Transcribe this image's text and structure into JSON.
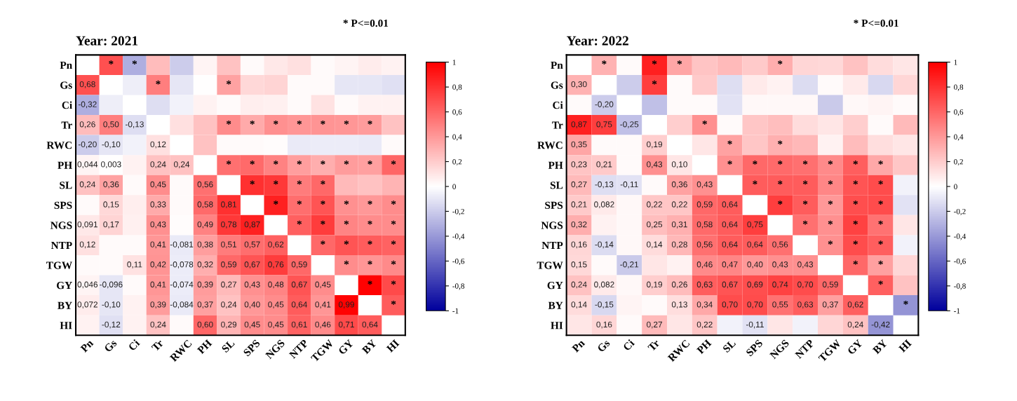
{
  "chart_data": [
    {
      "type": "heatmap",
      "title": "Year: 2021",
      "annotations": [
        "* P<=0.01"
      ],
      "categories": [
        "Pn",
        "Gs",
        "Ci",
        "Tr",
        "RWC",
        "PH",
        "SL",
        "SPS",
        "NGS",
        "NTP",
        "TGW",
        "GY",
        "BY",
        "HI"
      ],
      "y_categories": [
        "Pn",
        "Gs",
        "Ci",
        "Tr",
        "RWC",
        "PH",
        "SL",
        "SPS",
        "NGS",
        "NTP",
        "TGW",
        "GY",
        "BY",
        "HI"
      ],
      "cells": [
        [
          null,
          0.68,
          -0.32,
          0.26,
          -0.2,
          0.044,
          0.24,
          0.02,
          0.091,
          0.12,
          0.02,
          0.046,
          0.072,
          0.05
        ],
        [
          0.68,
          null,
          -0.07,
          0.5,
          -0.1,
          0.003,
          0.36,
          0.15,
          0.17,
          0.02,
          0.02,
          -0.096,
          -0.1,
          -0.12
        ],
        [
          -0.32,
          -0.07,
          null,
          -0.13,
          -0.05,
          0.05,
          0.02,
          0.07,
          0.06,
          0.02,
          0.11,
          0.02,
          0.05,
          0.05
        ],
        [
          0.26,
          0.5,
          -0.13,
          null,
          0.12,
          0.24,
          0.45,
          0.33,
          0.43,
          0.41,
          0.42,
          0.41,
          0.39,
          0.24
        ],
        [
          -0.2,
          -0.1,
          -0.05,
          0.12,
          null,
          0.24,
          0.02,
          0.02,
          0.01,
          -0.081,
          -0.078,
          -0.074,
          -0.084,
          0.02
        ],
        [
          0.044,
          0.003,
          0.05,
          0.24,
          0.24,
          null,
          0.56,
          0.58,
          0.49,
          0.38,
          0.32,
          0.39,
          0.37,
          0.6
        ],
        [
          0.24,
          0.36,
          0.02,
          0.45,
          0.02,
          0.56,
          null,
          0.81,
          0.78,
          0.51,
          0.59,
          0.27,
          0.24,
          0.29
        ],
        [
          0.02,
          0.15,
          0.07,
          0.33,
          0.02,
          0.58,
          0.81,
          null,
          0.87,
          0.57,
          0.67,
          0.43,
          0.4,
          0.45
        ],
        [
          0.091,
          0.17,
          0.06,
          0.43,
          0.01,
          0.49,
          0.78,
          0.87,
          null,
          0.62,
          0.76,
          0.48,
          0.45,
          0.45
        ],
        [
          0.12,
          0.02,
          0.02,
          0.41,
          -0.081,
          0.38,
          0.51,
          0.57,
          0.62,
          null,
          0.59,
          0.67,
          0.64,
          0.61
        ],
        [
          0.02,
          0.02,
          0.11,
          0.42,
          -0.078,
          0.32,
          0.59,
          0.67,
          0.76,
          0.59,
          null,
          0.45,
          0.41,
          0.46
        ],
        [
          0.046,
          -0.096,
          0.02,
          0.41,
          -0.074,
          0.39,
          0.27,
          0.43,
          0.48,
          0.67,
          0.45,
          null,
          0.99,
          0.71
        ],
        [
          0.072,
          -0.1,
          0.05,
          0.39,
          -0.084,
          0.37,
          0.24,
          0.4,
          0.45,
          0.64,
          0.41,
          0.99,
          null,
          0.64
        ],
        [
          0.05,
          -0.12,
          0.05,
          0.24,
          0.02,
          0.6,
          0.29,
          0.45,
          0.45,
          0.61,
          0.46,
          0.71,
          0.64,
          null
        ]
      ],
      "cell_labels": [
        [
          null,
          "*",
          "*",
          null,
          null,
          null,
          null,
          null,
          null,
          null,
          null,
          null,
          null,
          null
        ],
        [
          "0,68",
          null,
          null,
          "*",
          null,
          null,
          "*",
          null,
          null,
          null,
          null,
          null,
          null,
          null
        ],
        [
          "-0,32",
          null,
          null,
          null,
          null,
          null,
          null,
          null,
          null,
          null,
          null,
          null,
          null,
          null
        ],
        [
          "0,26",
          "0,50",
          "-0,13",
          null,
          null,
          null,
          "*",
          "*",
          "*",
          "*",
          "*",
          "*",
          "*",
          null
        ],
        [
          "-0,20",
          "-0,10",
          null,
          "0,12",
          null,
          null,
          null,
          null,
          null,
          null,
          null,
          null,
          null,
          null
        ],
        [
          "0,044",
          "0,003",
          null,
          "0,24",
          "0,24",
          null,
          "*",
          "*",
          "*",
          "*",
          "*",
          "*",
          "*",
          "*"
        ],
        [
          "0,24",
          "0,36",
          null,
          "0,45",
          null,
          "0,56",
          null,
          "*",
          "*",
          "*",
          "*",
          null,
          null,
          null
        ],
        [
          null,
          "0,15",
          null,
          "0,33",
          null,
          "0,58",
          "0,81",
          null,
          "*",
          "*",
          "*",
          "*",
          "*",
          "*"
        ],
        [
          "0,091",
          "0,17",
          null,
          "0,43",
          null,
          "0,49",
          "0,78",
          "0,87",
          null,
          "*",
          "*",
          "*",
          "*",
          "*"
        ],
        [
          "0,12",
          null,
          null,
          "0,41",
          "-0,081",
          "0,38",
          "0,51",
          "0,57",
          "0,62",
          null,
          "*",
          "*",
          "*",
          "*"
        ],
        [
          null,
          null,
          "0,11",
          "0,42",
          "-0,078",
          "0,32",
          "0,59",
          "0,67",
          "0,76",
          "0,59",
          null,
          "*",
          "*",
          "*"
        ],
        [
          "0,046",
          "-0,096",
          null,
          "0,41",
          "-0,074",
          "0,39",
          "0,27",
          "0,43",
          "0,48",
          "0,67",
          "0,45",
          null,
          "*",
          "*"
        ],
        [
          "0,072",
          "-0,10",
          null,
          "0,39",
          "-0,084",
          "0,37",
          "0,24",
          "0,40",
          "0,45",
          "0,64",
          "0,41",
          "0,99",
          null,
          "*"
        ],
        [
          null,
          "-0,12",
          null,
          "0,24",
          null,
          "0,60",
          "0,29",
          "0,45",
          "0,45",
          "0,61",
          "0,46",
          "0,71",
          "0,64",
          null
        ]
      ],
      "clim": [
        -1,
        1
      ],
      "cticks": [
        {
          "value": -1,
          "label": "-1"
        },
        {
          "value": -0.8,
          "label": "-0,8"
        },
        {
          "value": -0.6,
          "label": "-0,6"
        },
        {
          "value": -0.4,
          "label": "-0,4"
        },
        {
          "value": -0.2,
          "label": "-0,2"
        },
        0,
        {
          "value": 0.2,
          "label": "0,2"
        },
        {
          "value": 0.4,
          "label": "0,4"
        },
        {
          "value": 0.6,
          "label": "0,6"
        },
        {
          "value": 0.8,
          "label": "0,8"
        },
        1
      ]
    },
    {
      "type": "heatmap",
      "title": "Year: 2022",
      "annotations": [
        "* P<=0.01"
      ],
      "categories": [
        "Pn",
        "Gs",
        "Ci",
        "Tr",
        "RWC",
        "PH",
        "SL",
        "SPS",
        "NGS",
        "NTP",
        "TGW",
        "GY",
        "BY",
        "HI"
      ],
      "y_categories": [
        "Pn",
        "Gs",
        "Ci",
        "Tr",
        "RWC",
        "PH",
        "SL",
        "SPS",
        "NGS",
        "NTP",
        "TGW",
        "GY",
        "BY",
        "HI"
      ],
      "cells": [
        [
          null,
          0.3,
          0.02,
          0.87,
          0.35,
          0.23,
          0.27,
          0.21,
          0.32,
          0.16,
          0.15,
          0.24,
          0.14,
          0.1
        ],
        [
          0.3,
          null,
          -0.2,
          0.75,
          0.02,
          0.21,
          -0.13,
          0.082,
          0.05,
          -0.14,
          0.02,
          0.082,
          -0.15,
          0.16
        ],
        [
          0.02,
          -0.2,
          null,
          -0.25,
          0.02,
          0.02,
          -0.11,
          0.03,
          0.03,
          0.03,
          -0.21,
          0.03,
          0.04,
          0.02
        ],
        [
          0.87,
          0.75,
          -0.25,
          null,
          0.19,
          0.43,
          0.02,
          0.22,
          0.25,
          0.14,
          0.1,
          0.19,
          0.02,
          0.27
        ],
        [
          0.35,
          0.02,
          0.02,
          0.19,
          null,
          0.1,
          0.36,
          0.22,
          0.31,
          0.28,
          0.05,
          0.26,
          0.13,
          0.1
        ],
        [
          0.23,
          0.21,
          0.02,
          0.43,
          0.1,
          null,
          0.43,
          0.59,
          0.58,
          0.56,
          0.46,
          0.63,
          0.34,
          0.22
        ],
        [
          0.27,
          -0.13,
          -0.11,
          0.02,
          0.36,
          0.43,
          null,
          0.64,
          0.64,
          0.64,
          0.47,
          0.67,
          0.7,
          -0.05
        ],
        [
          0.21,
          0.082,
          0.03,
          0.22,
          0.22,
          0.59,
          0.64,
          null,
          0.75,
          0.64,
          0.4,
          0.69,
          0.7,
          -0.11
        ],
        [
          0.32,
          0.05,
          0.03,
          0.25,
          0.31,
          0.58,
          0.64,
          0.75,
          null,
          0.56,
          0.43,
          0.74,
          0.55,
          0.1
        ],
        [
          0.16,
          -0.14,
          0.03,
          0.14,
          0.28,
          0.56,
          0.64,
          0.64,
          0.56,
          null,
          0.43,
          0.7,
          0.63,
          -0.05
        ],
        [
          0.15,
          0.02,
          -0.21,
          0.1,
          0.05,
          0.46,
          0.47,
          0.4,
          0.43,
          0.43,
          null,
          0.59,
          0.37,
          0.16
        ],
        [
          0.24,
          0.082,
          0.03,
          0.19,
          0.26,
          0.63,
          0.67,
          0.69,
          0.74,
          0.7,
          0.59,
          null,
          0.62,
          0.24
        ],
        [
          0.14,
          -0.15,
          0.04,
          0.02,
          0.13,
          0.34,
          0.7,
          0.7,
          0.55,
          0.63,
          0.37,
          0.62,
          null,
          -0.42
        ],
        [
          0.1,
          0.16,
          0.02,
          0.27,
          0.1,
          0.22,
          -0.05,
          -0.11,
          0.1,
          -0.05,
          0.16,
          0.24,
          -0.42,
          null
        ]
      ],
      "cell_labels": [
        [
          null,
          "*",
          null,
          "*",
          "*",
          null,
          null,
          null,
          "*",
          null,
          null,
          null,
          null,
          null
        ],
        [
          "0,30",
          null,
          null,
          "*",
          null,
          null,
          null,
          null,
          null,
          null,
          null,
          null,
          null,
          null
        ],
        [
          null,
          "-0,20",
          null,
          null,
          null,
          null,
          null,
          null,
          null,
          null,
          null,
          null,
          null,
          null
        ],
        [
          "0,87",
          "0,75",
          "-0,25",
          null,
          null,
          "*",
          null,
          null,
          null,
          null,
          null,
          null,
          null,
          null
        ],
        [
          "0,35",
          null,
          null,
          "0,19",
          null,
          null,
          "*",
          null,
          "*",
          null,
          null,
          null,
          null,
          null
        ],
        [
          "0,23",
          "0,21",
          null,
          "0,43",
          "0,10",
          null,
          "*",
          "*",
          "*",
          "*",
          "*",
          "*",
          "*",
          null
        ],
        [
          "0,27",
          "-0,13",
          "-0,11",
          null,
          "0,36",
          "0,43",
          null,
          "*",
          "*",
          "*",
          "*",
          "*",
          "*",
          null
        ],
        [
          "0,21",
          "0,082",
          null,
          "0,22",
          "0,22",
          "0,59",
          "0,64",
          null,
          "*",
          "*",
          "*",
          "*",
          "*",
          null
        ],
        [
          "0,32",
          null,
          null,
          "0,25",
          "0,31",
          "0,58",
          "0,64",
          "0,75",
          null,
          "*",
          "*",
          "*",
          "*",
          null
        ],
        [
          "0,16",
          "-0,14",
          null,
          "0,14",
          "0,28",
          "0,56",
          "0,64",
          "0,64",
          "0,56",
          null,
          "*",
          "*",
          "*",
          null
        ],
        [
          "0,15",
          null,
          "-0,21",
          null,
          null,
          "0,46",
          "0,47",
          "0,40",
          "0,43",
          "0,43",
          null,
          "*",
          "*",
          null
        ],
        [
          "0,24",
          "0,082",
          null,
          "0,19",
          "0,26",
          "0,63",
          "0,67",
          "0,69",
          "0,74",
          "0,70",
          "0,59",
          null,
          "*",
          null
        ],
        [
          "0,14",
          "-0,15",
          null,
          null,
          "0,13",
          "0,34",
          "0,70",
          "0,70",
          "0,55",
          "0,63",
          "0,37",
          "0,62",
          null,
          "*"
        ],
        [
          null,
          "0,16",
          null,
          "0,27",
          null,
          "0,22",
          null,
          "-0,11",
          null,
          null,
          null,
          "0,24",
          "-0,42",
          null
        ]
      ],
      "clim": [
        -1,
        1
      ],
      "cticks": [
        {
          "value": -1,
          "label": "-1"
        },
        {
          "value": -0.8,
          "label": "-0,8"
        },
        {
          "value": -0.6,
          "label": "-0,6"
        },
        {
          "value": -0.4,
          "label": "-0,4"
        },
        {
          "value": -0.2,
          "label": "-0,2"
        },
        0,
        {
          "value": 0.2,
          "label": "0,2"
        },
        {
          "value": 0.4,
          "label": "0,4"
        },
        {
          "value": 0.6,
          "label": "0,6"
        },
        {
          "value": 0.8,
          "label": "0,8"
        },
        1
      ]
    }
  ]
}
